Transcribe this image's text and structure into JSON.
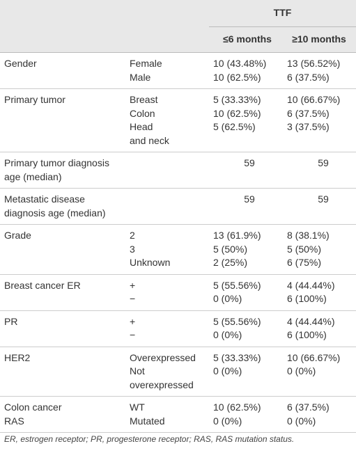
{
  "table": {
    "header": {
      "group": "TTF",
      "columns": [
        "≤6 months",
        "≥10 months"
      ]
    },
    "rows": [
      {
        "label": [
          "Gender"
        ],
        "items": [
          {
            "sub": [
              "Female"
            ],
            "a": "10 (43.48%)",
            "b": "13 (56.52%)"
          },
          {
            "sub": [
              "Male"
            ],
            "a": "10 (62.5%)",
            "b": "6 (37.5%)"
          }
        ]
      },
      {
        "label": [
          "Primary tumor"
        ],
        "items": [
          {
            "sub": [
              "Breast"
            ],
            "a": "5 (33.33%)",
            "b": "10 (66.67%)"
          },
          {
            "sub": [
              "Colon"
            ],
            "a": "10 (62.5%)",
            "b": "6 (37.5%)"
          },
          {
            "sub": [
              "Head",
              "and neck"
            ],
            "a": "5 (62.5%)",
            "b": "3 (37.5%)"
          }
        ]
      },
      {
        "label": [
          "Primary tumor diagnosis",
          "age (median)"
        ],
        "items": [
          {
            "a": "59",
            "b": "59"
          }
        ]
      },
      {
        "label": [
          "Metastatic disease",
          "diagnosis age (median)"
        ],
        "items": [
          {
            "a": "59",
            "b": "59"
          }
        ]
      },
      {
        "label": [
          "Grade"
        ],
        "items": [
          {
            "sub": [
              "2"
            ],
            "a": "13 (61.9%)",
            "b": "8 (38.1%)"
          },
          {
            "sub": [
              "3"
            ],
            "a": "5 (50%)",
            "b": "5 (50%)"
          },
          {
            "sub": [
              "Unknown"
            ],
            "a": "2 (25%)",
            "b": "6 (75%)"
          }
        ]
      },
      {
        "label": [
          "Breast cancer ER"
        ],
        "items": [
          {
            "sub": [
              "+"
            ],
            "a": "5 (55.56%)",
            "b": "4 (44.44%)"
          },
          {
            "sub": [
              "−"
            ],
            "a": "0 (0%)",
            "b": "6 (100%)"
          }
        ]
      },
      {
        "label": [
          "PR"
        ],
        "items": [
          {
            "sub": [
              "+"
            ],
            "a": "5 (55.56%)",
            "b": "4 (44.44%)"
          },
          {
            "sub": [
              "−"
            ],
            "a": "0 (0%)",
            "b": "6 (100%)"
          }
        ]
      },
      {
        "label": [
          "HER2"
        ],
        "items": [
          {
            "sub": [
              "Overexpressed"
            ],
            "a": "5 (33.33%)",
            "b": "10 (66.67%)"
          },
          {
            "sub": [
              "Not",
              "overexpressed"
            ],
            "a": "0 (0%)",
            "b": "0 (0%)"
          }
        ]
      },
      {
        "label": [
          "Colon cancer",
          "RAS"
        ],
        "items": [
          {
            "sub": [
              "WT"
            ],
            "a": "10 (62.5%)",
            "b": "6 (37.5%)"
          },
          {
            "sub": [
              "Mutated"
            ],
            "a": "0 (0%)",
            "b": "0 (0%)"
          }
        ]
      }
    ],
    "footnote": "ER, estrogen receptor; PR, progesterone receptor; RAS, RAS mutation status."
  }
}
